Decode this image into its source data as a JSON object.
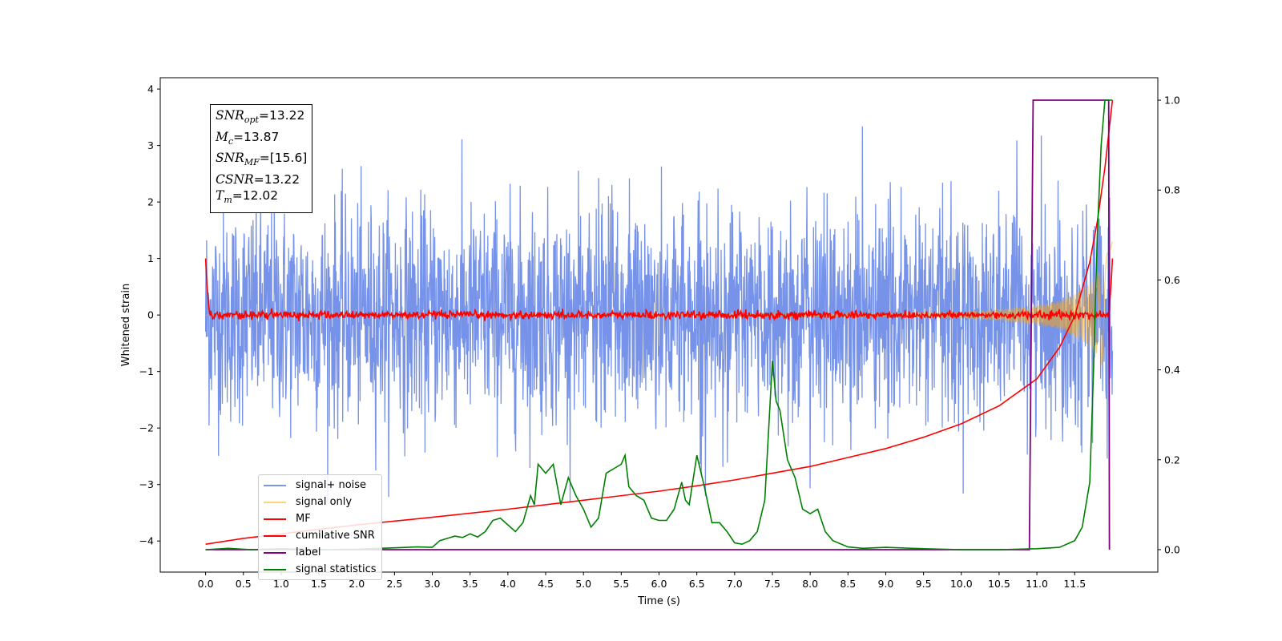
{
  "chart_data": {
    "type": "line",
    "xlabel": "Time (s)",
    "ylabel": "Whitened strain",
    "xlim": [
      -0.6,
      12.6
    ],
    "ylim": [
      -4.55,
      4.2
    ],
    "y2lim": [
      -0.05,
      1.05
    ],
    "x_ticks": [
      "0.0",
      "0.5",
      "1.0",
      "1.5",
      "2.0",
      "2.5",
      "3.0",
      "3.5",
      "4.0",
      "4.5",
      "5.0",
      "5.5",
      "6.0",
      "6.5",
      "7.0",
      "7.5",
      "8.0",
      "8.5",
      "9.0",
      "9.5",
      "10.0",
      "10.5",
      "11.0",
      "11.5"
    ],
    "y_ticks": [
      "4",
      "3",
      "2",
      "1",
      "0",
      "−1",
      "−2",
      "−3",
      "−4"
    ],
    "y2_ticks": [
      "1.0",
      "0.8",
      "0.6",
      "0.4",
      "0.2",
      "0.0"
    ],
    "annotation": {
      "snr_opt": {
        "sym": "SNR",
        "sub": "opt",
        "value": "=13.22"
      },
      "mc": {
        "sym": "M",
        "sub": "c",
        "value": "=13.87"
      },
      "snr_mf": {
        "sym": "SNR",
        "sub": "MF",
        "value": "=[15.6]"
      },
      "csnr": {
        "sym": "CSNR",
        "sub": "",
        "value": "=13.22"
      },
      "tm": {
        "sym": "T",
        "sub": "m",
        "value": "=12.02"
      }
    },
    "legend": [
      "signal+ noise",
      "signal only",
      "MF",
      "cumilative SNR",
      "label",
      "signal statistics"
    ],
    "series": [
      {
        "name": "signal+ noise",
        "color": "#4169e1",
        "axis": "left",
        "kind": "noise",
        "amplitude_range": [
          -3.4,
          3.35
        ]
      },
      {
        "name": "signal only",
        "color": "#ffa500",
        "axis": "left",
        "kind": "chirp",
        "envelope_t": [
          0,
          6,
          9,
          10,
          10.5,
          11,
          11.3,
          11.6,
          11.8,
          12.0
        ],
        "envelope_a": [
          0.005,
          0.01,
          0.03,
          0.06,
          0.1,
          0.17,
          0.25,
          0.45,
          0.7,
          1.3
        ]
      },
      {
        "name": "MF",
        "color": "#ff0000",
        "axis": "left",
        "x": [
          0,
          0.02,
          0.05,
          0.1,
          11.95,
          11.98,
          12.0
        ],
        "y": [
          1.0,
          0.5,
          0.05,
          0.0,
          0.0,
          0.5,
          1.0
        ]
      },
      {
        "name": "cumilative SNR",
        "color": "#ff0000",
        "axis": "right",
        "x": [
          0,
          0.5,
          1,
          2,
          3,
          4,
          5,
          6,
          6.5,
          7,
          7.5,
          8,
          8.5,
          9,
          9.5,
          10,
          10.5,
          11,
          11.3,
          11.5,
          11.7,
          11.8,
          11.9,
          12.0
        ],
        "y": [
          0.012,
          0.025,
          0.035,
          0.055,
          0.072,
          0.09,
          0.11,
          0.13,
          0.142,
          0.155,
          0.17,
          0.185,
          0.205,
          0.225,
          0.25,
          0.28,
          0.32,
          0.38,
          0.45,
          0.52,
          0.64,
          0.73,
          0.85,
          1.0
        ]
      },
      {
        "name": "label",
        "color": "#800080",
        "axis": "right",
        "x": [
          0,
          10.9,
          10.95,
          11.95,
          11.96
        ],
        "y": [
          0,
          0,
          1,
          1,
          0.0
        ]
      },
      {
        "name": "signal statistics",
        "color": "#008000",
        "axis": "right",
        "x": [
          0,
          0.3,
          0.6,
          1.0,
          1.5,
          2.0,
          2.5,
          2.8,
          3.0,
          3.1,
          3.2,
          3.3,
          3.4,
          3.5,
          3.6,
          3.7,
          3.8,
          3.9,
          4.0,
          4.1,
          4.2,
          4.3,
          4.35,
          4.4,
          4.45,
          4.5,
          4.6,
          4.7,
          4.8,
          4.9,
          5.0,
          5.1,
          5.2,
          5.3,
          5.4,
          5.5,
          5.55,
          5.6,
          5.7,
          5.8,
          5.9,
          6.0,
          6.1,
          6.2,
          6.3,
          6.35,
          6.4,
          6.5,
          6.6,
          6.7,
          6.8,
          6.9,
          7.0,
          7.1,
          7.2,
          7.3,
          7.4,
          7.5,
          7.55,
          7.6,
          7.7,
          7.8,
          7.9,
          8.0,
          8.1,
          8.2,
          8.3,
          8.5,
          8.7,
          9.0,
          9.5,
          10.0,
          10.5,
          11.0,
          11.3,
          11.5,
          11.6,
          11.7,
          11.75,
          11.8,
          11.85,
          11.9,
          11.95,
          12.0
        ],
        "y": [
          0.0,
          0.003,
          0.0,
          0.002,
          0.0,
          0.001,
          0.004,
          0.006,
          0.005,
          0.02,
          0.025,
          0.03,
          0.027,
          0.035,
          0.028,
          0.04,
          0.065,
          0.07,
          0.055,
          0.04,
          0.06,
          0.12,
          0.1,
          0.19,
          0.18,
          0.17,
          0.19,
          0.1,
          0.16,
          0.12,
          0.09,
          0.05,
          0.07,
          0.17,
          0.18,
          0.19,
          0.21,
          0.14,
          0.12,
          0.11,
          0.07,
          0.065,
          0.065,
          0.09,
          0.15,
          0.11,
          0.1,
          0.21,
          0.14,
          0.06,
          0.06,
          0.04,
          0.015,
          0.012,
          0.02,
          0.04,
          0.11,
          0.42,
          0.33,
          0.31,
          0.2,
          0.16,
          0.09,
          0.08,
          0.09,
          0.04,
          0.02,
          0.006,
          0.003,
          0.005,
          0.002,
          0.0,
          0.0,
          0.002,
          0.005,
          0.02,
          0.05,
          0.15,
          0.4,
          0.7,
          0.9,
          1.0,
          1.0,
          1.0
        ]
      }
    ]
  }
}
